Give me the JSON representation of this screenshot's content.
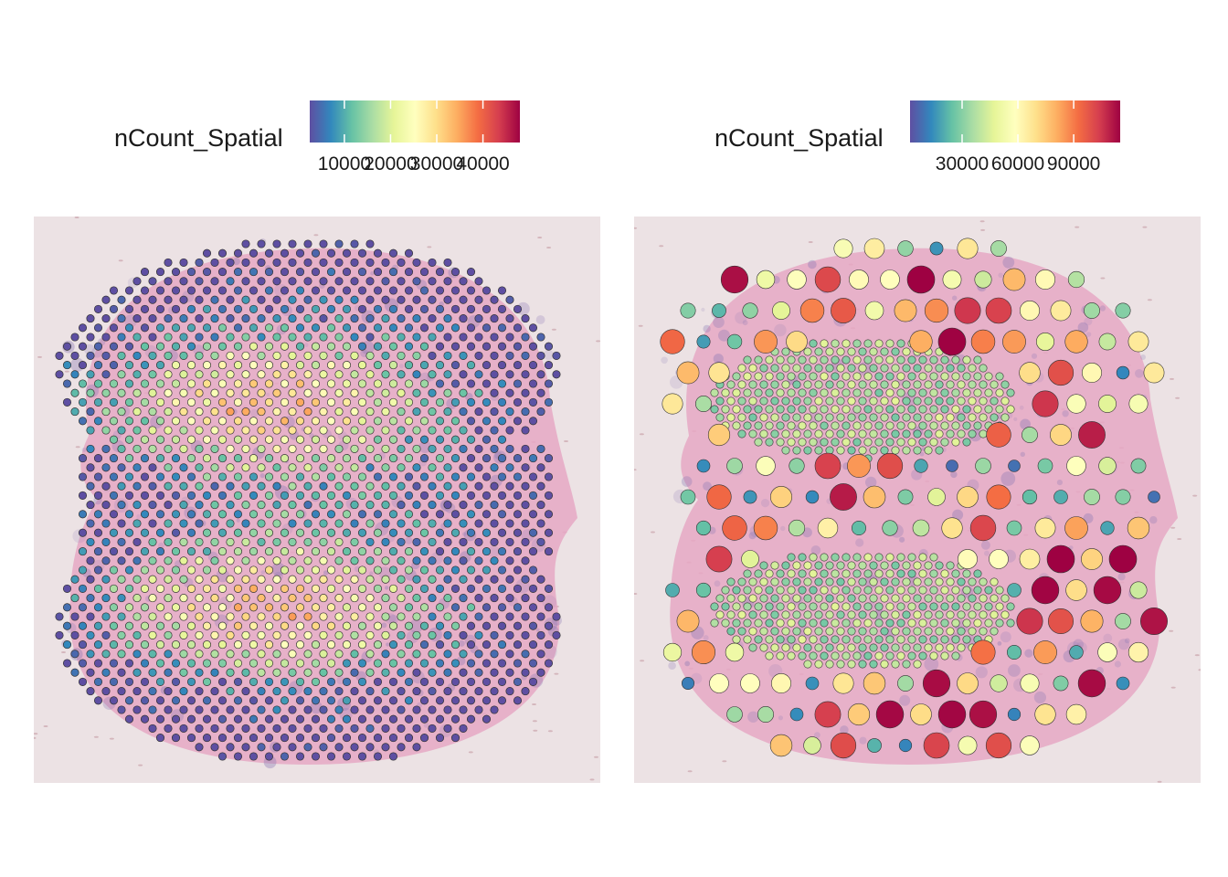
{
  "colors": {
    "spectral": [
      "#5e4fa2",
      "#3288bd",
      "#66c2a5",
      "#abdda4",
      "#e6f598",
      "#ffffbf",
      "#fee08b",
      "#fdae61",
      "#f46d43",
      "#d53e4f",
      "#9e0142"
    ],
    "background": "#ece2e4",
    "tissue_pink": "#e6a8c4",
    "tissue_purple": "#8a78b4"
  },
  "panels": [
    {
      "legend": {
        "title": "nCount_Spatial",
        "ticks": [
          {
            "label": "10000",
            "value": 10000
          },
          {
            "label": "20000",
            "value": 20000
          },
          {
            "label": "30000",
            "value": 30000
          },
          {
            "label": "40000",
            "value": 40000
          }
        ],
        "range": [
          2500,
          48000
        ]
      },
      "spot_style": "uniform"
    },
    {
      "legend": {
        "title": "nCount_Spatial",
        "ticks": [
          {
            "label": "30000",
            "value": 30000
          },
          {
            "label": "60000",
            "value": 60000
          },
          {
            "label": "90000",
            "value": 90000
          }
        ],
        "range": [
          2000,
          115000
        ]
      },
      "spot_style": "variable"
    }
  ],
  "chart_data": [
    {
      "type": "scatter",
      "title": "",
      "color_variable": "nCount_Spatial",
      "color_scale": "spectral",
      "value_range": [
        2500,
        48000
      ],
      "ticks": [
        10000,
        20000,
        30000,
        40000
      ],
      "axes_visible": false,
      "grid": false,
      "background": "tissue image",
      "legend_position": "top"
    },
    {
      "type": "scatter",
      "title": "",
      "color_variable": "nCount_Spatial",
      "color_scale": "spectral",
      "value_range": [
        2000,
        115000
      ],
      "ticks": [
        30000,
        60000,
        90000
      ],
      "axes_visible": false,
      "grid": false,
      "background": "tissue image",
      "legend_position": "top"
    }
  ]
}
